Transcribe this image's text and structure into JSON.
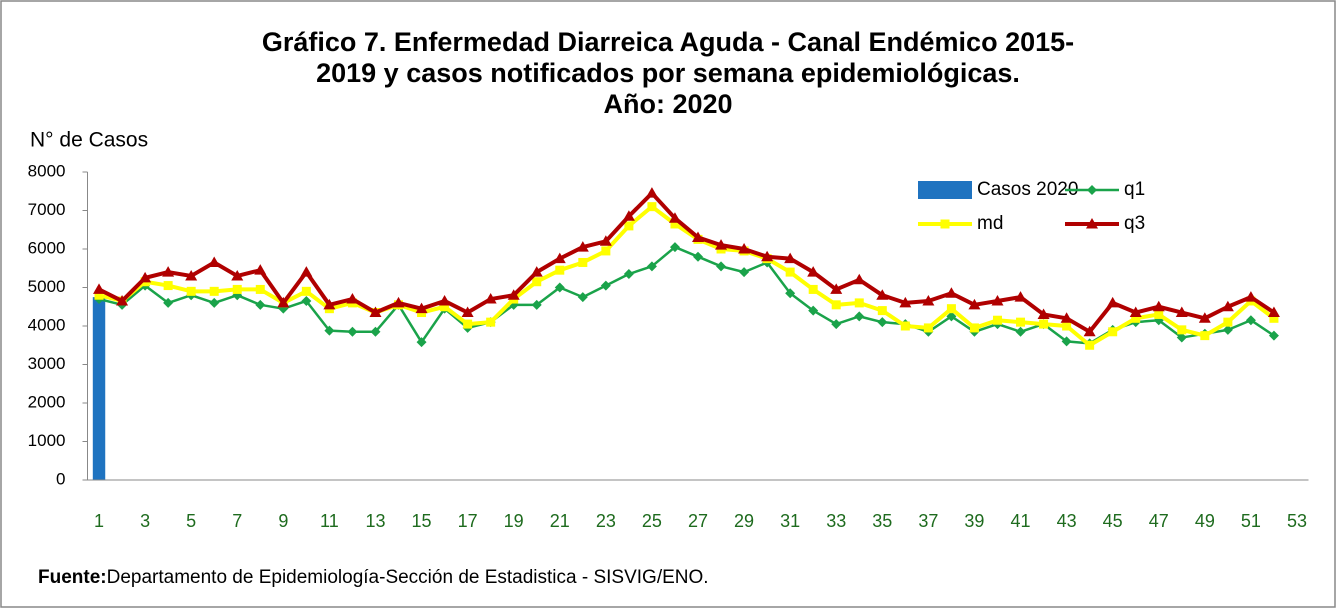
{
  "chart_data": {
    "type": "line",
    "title": [
      "Gráfico 7. Enfermedad Diarreica Aguda - Canal Endémico 2015-",
      "2019 y casos notificados por semana epidemiológicas.",
      "Año: 2020"
    ],
    "y_label": "N° de Casos",
    "source_label": "Fuente:",
    "source": "Departamento de Epidemiología-Sección de Estadistica - SISVIG/ENO.",
    "categories": [
      "1",
      null,
      "3",
      null,
      "5",
      null,
      "7",
      null,
      "9",
      null,
      "11",
      null,
      "13",
      null,
      "15",
      null,
      "17",
      null,
      "19",
      null,
      "21",
      null,
      "23",
      null,
      "25",
      null,
      "27",
      null,
      "29",
      null,
      "31",
      null,
      "33",
      null,
      "35",
      null,
      "37",
      null,
      "39",
      null,
      "41",
      null,
      "43",
      null,
      "45",
      null,
      "47",
      null,
      "49",
      null,
      "51",
      null,
      "53"
    ],
    "ylim": [
      0,
      8000
    ],
    "yticks": [
      0,
      1000,
      2000,
      3000,
      4000,
      5000,
      6000,
      7000,
      8000
    ],
    "grid": false,
    "legend": "top-right",
    "series": [
      {
        "name": "Casos 2020",
        "type": "bar",
        "color": "#1f73c0",
        "values": [
          4750,
          null,
          null,
          null,
          null,
          null,
          null,
          null,
          null,
          null,
          null,
          null,
          null,
          null,
          null,
          null,
          null,
          null,
          null,
          null,
          null,
          null,
          null,
          null,
          null,
          null,
          null,
          null,
          null,
          null,
          null,
          null,
          null,
          null,
          null,
          null,
          null,
          null,
          null,
          null,
          null,
          null,
          null,
          null,
          null,
          null,
          null,
          null,
          null,
          null,
          null,
          null,
          null
        ]
      },
      {
        "name": "q1",
        "type": "line",
        "marker": "diamond",
        "color": "#1aa34a",
        "values": [
          4700,
          4550,
          5050,
          4600,
          4800,
          4600,
          4800,
          4550,
          4450,
          4650,
          3880,
          3850,
          3850,
          4550,
          3580,
          4450,
          3950,
          4100,
          4550,
          4550,
          5000,
          4750,
          5050,
          5350,
          5550,
          6050,
          5800,
          5550,
          5400,
          5650,
          4850,
          4400,
          4050,
          4250,
          4100,
          4050,
          3850,
          4250,
          3850,
          4050,
          3850,
          4050,
          3600,
          3550,
          3900,
          4100,
          4150,
          3700,
          3800,
          3900,
          4150,
          3750,
          null
        ]
      },
      {
        "name": "md",
        "type": "line",
        "marker": "square",
        "color": "#ffff00",
        "values": [
          4800,
          4650,
          5150,
          5050,
          4900,
          4900,
          4950,
          4950,
          4600,
          4900,
          4450,
          4600,
          4350,
          4550,
          4350,
          4500,
          4050,
          4100,
          4700,
          5150,
          5450,
          5650,
          5950,
          6600,
          7100,
          6650,
          6250,
          6000,
          5950,
          5750,
          5400,
          4950,
          4550,
          4600,
          4400,
          4000,
          3950,
          4450,
          3950,
          4150,
          4100,
          4050,
          4000,
          3500,
          3850,
          4200,
          4300,
          3900,
          3750,
          4100,
          4650,
          4200,
          null
        ]
      },
      {
        "name": "q3",
        "type": "line",
        "marker": "triangle",
        "color": "#b00000",
        "values": [
          4950,
          4650,
          5250,
          5400,
          5300,
          5650,
          5300,
          5450,
          4600,
          5400,
          4550,
          4700,
          4350,
          4600,
          4450,
          4650,
          4350,
          4700,
          4800,
          5400,
          5750,
          6050,
          6200,
          6850,
          7450,
          6800,
          6300,
          6100,
          6000,
          5800,
          5750,
          5400,
          4950,
          5200,
          4800,
          4600,
          4650,
          4850,
          4550,
          4650,
          4750,
          4300,
          4200,
          3850,
          4600,
          4350,
          4500,
          4350,
          4200,
          4500,
          4750,
          4350,
          null
        ]
      }
    ]
  }
}
